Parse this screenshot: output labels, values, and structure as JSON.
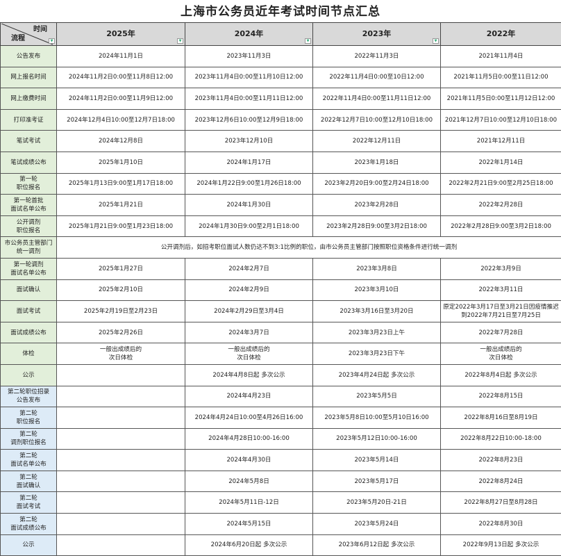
{
  "title": "上海市公务员近年考试时间节点汇总",
  "corner": {
    "top": "时间",
    "bottom": "流程"
  },
  "years": [
    "2025年",
    "2024年",
    "2023年",
    "2022年"
  ],
  "colors": {
    "header_bg": "#d9d9d9",
    "round1_label_bg": "#e2efda",
    "round2_label_bg": "#ddebf7"
  },
  "rows": [
    {
      "label": "公告发布",
      "round": 1,
      "cells": [
        "2024年11月1日",
        "2023年11月3日",
        "2022年11月3日",
        "2021年11月4日"
      ]
    },
    {
      "label": "网上报名时间",
      "round": 1,
      "cells": [
        "2024年11月2日0:00至11月8日12:00",
        "2023年11月4日0:00至11月10日12:00",
        "2022年11月4日0:00至10日12:00",
        "2021年11月5日0:00至11日12:00"
      ]
    },
    {
      "label": "网上缴费时间",
      "round": 1,
      "cells": [
        "2024年11月2日0:00至11月9日12:00",
        "2023年11月4日0:00至11月11日12:00",
        "2022年11月4日0:00至11月11日12:00",
        "2021年11月5日0:00至11月12日12:00"
      ]
    },
    {
      "label": "打印准考证",
      "round": 1,
      "cells": [
        "2024年12月4日10:00至12月7日18:00",
        "2023年12月6日10:00至12月9日18:00",
        "2022年12月7日10:00至12月10日18:00",
        "2021年12月7日10:00至12月10日18:00"
      ]
    },
    {
      "label": "笔试考试",
      "round": 1,
      "cells": [
        "2024年12月8日",
        "2023年12月10日",
        "2022年12月11日",
        "2021年12月11日"
      ]
    },
    {
      "label": "笔试成绩公布",
      "round": 1,
      "cells": [
        "2025年1月10日",
        "2024年1月17日",
        "2023年1月18日",
        "2022年1月14日"
      ]
    },
    {
      "label": "第一轮\n职位报名",
      "round": 1,
      "cells": [
        "2025年1月13日9:00至1月17日18:00",
        "2024年1月22日9:00至1月26日18:00",
        "2023年2月20日9:00至2月24日18:00",
        "2022年2月21日9:00至2月25日18:00"
      ]
    },
    {
      "label": "第一轮首批\n面试名单公布",
      "round": 1,
      "cells": [
        "2025年1月21日",
        "2024年1月30日",
        "2023年2月28日",
        "2022年2月28日"
      ]
    },
    {
      "label": "公开调剂\n职位报名",
      "round": 1,
      "cells": [
        "2025年1月21日9:00至1月23日18:00",
        "2024年1月30日9:00至2月1日18:00",
        "2023年2月28日9:00至3月2日18:00",
        "2022年2月28日9:00至3月2日18:00"
      ]
    },
    {
      "label": "市公务员主管部门\n统一调剂",
      "round": 1,
      "note": "公开调剂后，如招考职位面试人数仍达不到3:1比例的职位，由市公务员主管部门按照职位资格条件进行统一调剂"
    },
    {
      "label": "第一轮调剂\n面试名单公布",
      "round": 1,
      "cells": [
        "2025年1月27日",
        "2024年2月7日",
        "2023年3月8日",
        "2022年3月9日"
      ]
    },
    {
      "label": "面试确认",
      "round": 1,
      "cells": [
        "2025年2月10日",
        "2024年2月9日",
        "2023年3月10日",
        "2022年3月11日"
      ]
    },
    {
      "label": "面试考试",
      "round": 1,
      "cells": [
        "2025年2月19日至2月23日",
        "2024年2月29日至3月4日",
        "2023年3月16日至3月20日",
        "原定2022年3月17日至3月21日因疫情推迟\n到2022年7月21日至7月25日"
      ]
    },
    {
      "label": "面试成绩公布",
      "round": 1,
      "cells": [
        "2025年2月26日",
        "2024年3月7日",
        "2023年3月23日上午",
        "2022年7月28日"
      ]
    },
    {
      "label": "体检",
      "round": 1,
      "cells": [
        "一般出成绩后的\n次日体检",
        "一般出成绩后的\n次日体检",
        "2023年3月23日下午",
        "一般出成绩后的\n次日体检"
      ]
    },
    {
      "label": "公示",
      "round": 1,
      "cells": [
        "",
        "2024年4月8日起  多次公示",
        "2023年4月24日起  多次公示",
        "2022年8月4日起  多次公示"
      ]
    },
    {
      "label": "第二轮职位招录\n公告发布",
      "round": 2,
      "cells": [
        "",
        "2024年4月23日",
        "2023年5月5日",
        "2022年8月15日"
      ]
    },
    {
      "label": "第二轮\n职位报名",
      "round": 2,
      "cells": [
        "",
        "2024年4月24日10:00至4月26日16:00",
        "2023年5月8日10:00至5月10日16:00",
        "2022年8月16日至8月19日"
      ]
    },
    {
      "label": "第二轮\n调剂职位报名",
      "round": 2,
      "cells": [
        "",
        "2024年4月28日10:00-16:00",
        "2023年5月12日10:00-16:00",
        "2022年8月22日10:00-18:00"
      ]
    },
    {
      "label": "第二轮\n面试名单公布",
      "round": 2,
      "cells": [
        "",
        "2024年4月30日",
        "2023年5月14日",
        "2022年8月23日"
      ]
    },
    {
      "label": "第二轮\n面试确认",
      "round": 2,
      "cells": [
        "",
        "2024年5月8日",
        "2023年5月17日",
        "2022年8月24日"
      ]
    },
    {
      "label": "第二轮\n面试考试",
      "round": 2,
      "cells": [
        "",
        "2024年5月11日-12日",
        "2023年5月20日-21日",
        "2022年8月27日至8月28日"
      ]
    },
    {
      "label": "第二轮\n面试成绩公布",
      "round": 2,
      "cells": [
        "",
        "2024年5月15日",
        "2023年5月24日",
        "2022年8月30日"
      ]
    },
    {
      "label": "公示",
      "round": 2,
      "cells": [
        "",
        "2024年6月20日起  多次公示",
        "2023年6月12日起  多次公示",
        "2022年9月13日起  多次公示"
      ]
    }
  ]
}
